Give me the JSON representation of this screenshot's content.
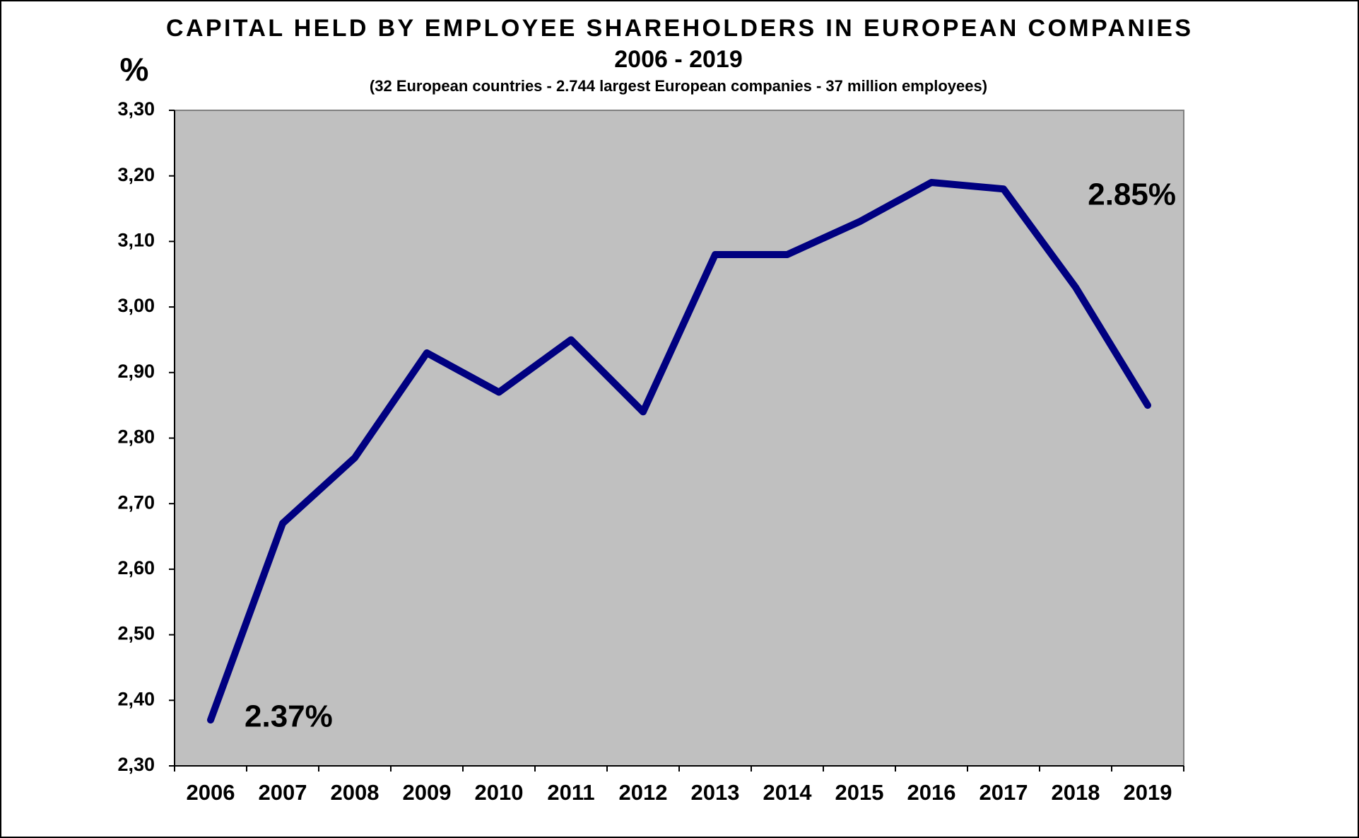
{
  "chart_data": {
    "type": "line",
    "title": "CAPITAL HELD BY EMPLOYEE SHAREHOLDERS IN EUROPEAN COMPANIES",
    "title_line2": "2006 - 2019",
    "subtitle": "(32 European countries - 2.744 largest European companies - 37 million employees)",
    "y_label": "%",
    "categories": [
      "2006",
      "2007",
      "2008",
      "2009",
      "2010",
      "2011",
      "2012",
      "2013",
      "2014",
      "2015",
      "2016",
      "2017",
      "2018",
      "2019"
    ],
    "series": [
      {
        "name": "Capital held by employee shareholders",
        "color": "#000080",
        "values": [
          2.37,
          2.67,
          2.77,
          2.93,
          2.87,
          2.95,
          2.84,
          3.08,
          3.08,
          3.13,
          3.19,
          3.18,
          3.03,
          2.85
        ],
        "value_labels": [
          "2.37%",
          null,
          null,
          null,
          null,
          null,
          null,
          null,
          null,
          null,
          null,
          null,
          null,
          "2.85%"
        ],
        "value_label_color": "#0d4010"
      }
    ],
    "ylim": [
      2.3,
      3.3
    ],
    "yticks": [
      {
        "value": 2.3,
        "label": "2,30"
      },
      {
        "value": 2.4,
        "label": "2,40"
      },
      {
        "value": 2.5,
        "label": "2,50"
      },
      {
        "value": 2.6,
        "label": "2,60"
      },
      {
        "value": 2.7,
        "label": "2,70"
      },
      {
        "value": 2.8,
        "label": "2,80"
      },
      {
        "value": 2.9,
        "label": "2,90"
      },
      {
        "value": 3.0,
        "label": "3,00"
      },
      {
        "value": 3.1,
        "label": "3,10"
      },
      {
        "value": 3.2,
        "label": "3,20"
      },
      {
        "value": 3.3,
        "label": "3,30"
      }
    ],
    "grid": false,
    "plot_background": "#c0c0c0"
  }
}
